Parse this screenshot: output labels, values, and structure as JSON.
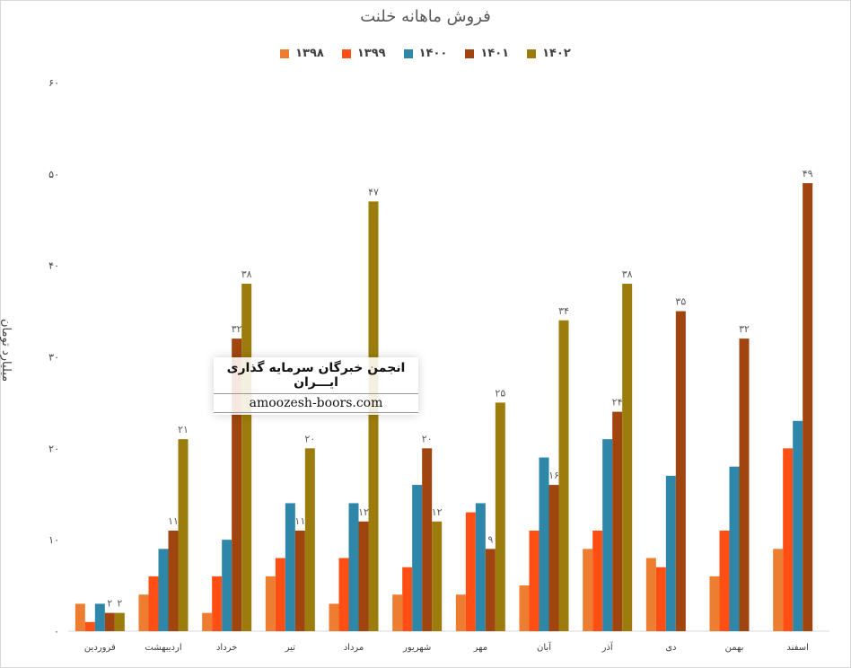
{
  "chart_data": {
    "type": "bar",
    "title": "فروش ماهانه خلنت",
    "ylabel": "میلیارد تومان",
    "xlabel": "",
    "ylim": [
      0,
      60
    ],
    "yticks": [
      "۰",
      "۱۰",
      "۲۰",
      "۳۰",
      "۴۰",
      "۵۰",
      "۶۰"
    ],
    "categories": [
      "فروردین",
      "اردیبهشت",
      "خرداد",
      "تیر",
      "مرداد",
      "شهریور",
      "مهر",
      "آبان",
      "آذر",
      "دی",
      "بهمن",
      "اسفند"
    ],
    "series": [
      {
        "name": "۱۳۹۸",
        "color": "#ED7D31",
        "values": [
          3,
          4,
          2,
          6,
          3,
          4,
          4,
          5,
          9,
          8,
          6,
          9
        ]
      },
      {
        "name": "۱۳۹۹",
        "color": "#FF4F14",
        "values": [
          1,
          6,
          6,
          8,
          8,
          7,
          13,
          11,
          11,
          7,
          11,
          20
        ]
      },
      {
        "name": "۱۴۰۰",
        "color": "#2E86A8",
        "values": [
          3,
          9,
          10,
          14,
          14,
          16,
          14,
          19,
          21,
          17,
          18,
          23
        ]
      },
      {
        "name": "۱۴۰۱",
        "color": "#A0450F",
        "values": [
          2,
          11,
          32,
          11,
          12,
          20,
          9,
          16,
          24,
          35,
          32,
          49
        ]
      },
      {
        "name": "۱۴۰۲",
        "color": "#9C7C0C",
        "values": [
          2,
          21,
          38,
          20,
          47,
          12,
          25,
          34,
          38,
          null,
          null,
          null
        ]
      }
    ],
    "data_labels": [
      {
        "series": 3,
        "category": 0,
        "text": "۲"
      },
      {
        "series": 4,
        "category": 0,
        "text": "۲"
      },
      {
        "series": 3,
        "category": 1,
        "text": "۱۱"
      },
      {
        "series": 4,
        "category": 1,
        "text": "۲۱"
      },
      {
        "series": 3,
        "category": 2,
        "text": "۳۲"
      },
      {
        "series": 4,
        "category": 2,
        "text": "۳۸"
      },
      {
        "series": 3,
        "category": 3,
        "text": "۱۱"
      },
      {
        "series": 4,
        "category": 3,
        "text": "۲۰"
      },
      {
        "series": 3,
        "category": 4,
        "text": "۱۲"
      },
      {
        "series": 4,
        "category": 4,
        "text": "۴۷"
      },
      {
        "series": 3,
        "category": 5,
        "text": "۲۰"
      },
      {
        "series": 4,
        "category": 5,
        "text": "۱۲"
      },
      {
        "series": 3,
        "category": 6,
        "text": "۹"
      },
      {
        "series": 4,
        "category": 6,
        "text": "۲۵"
      },
      {
        "series": 3,
        "category": 7,
        "text": "۱۶"
      },
      {
        "series": 4,
        "category": 7,
        "text": "۳۴"
      },
      {
        "series": 3,
        "category": 8,
        "text": "۲۴"
      },
      {
        "series": 4,
        "category": 8,
        "text": "۳۸"
      },
      {
        "series": 3,
        "category": 9,
        "text": "۳۵"
      },
      {
        "series": 3,
        "category": 10,
        "text": "۳۲"
      },
      {
        "series": 3,
        "category": 11,
        "text": "۴۹"
      }
    ],
    "grid": false,
    "legend_position": "top"
  },
  "watermark": {
    "title": "انجمن خبرگان سرمایه گذاری ایـــران",
    "url": "amoozesh-boors.com"
  }
}
